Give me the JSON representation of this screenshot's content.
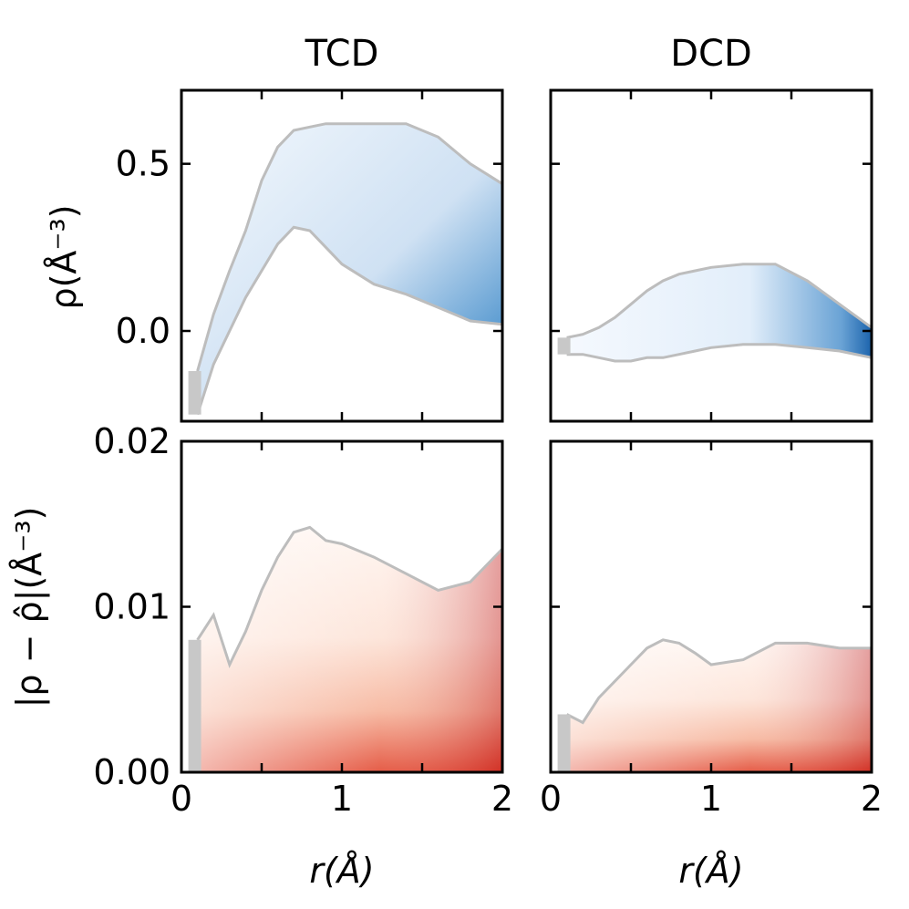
{
  "chart_data": [
    {
      "id": "tcd-density",
      "type": "heatmap",
      "title": "TCD",
      "xlabel": "",
      "ylabel": "ρ(Å⁻³)",
      "xlim": [
        0,
        2
      ],
      "ylim": [
        -0.27,
        0.72
      ],
      "yticks": [
        0.0,
        0.5
      ],
      "ytick_labels": [
        "0.0",
        "0.5"
      ],
      "colormap": "Blues",
      "band": {
        "r": [
          0.1,
          0.2,
          0.3,
          0.4,
          0.5,
          0.6,
          0.7,
          0.8,
          0.9,
          1.0,
          1.2,
          1.4,
          1.6,
          1.8,
          2.0
        ],
        "lower": [
          -0.25,
          -0.1,
          0.0,
          0.1,
          0.18,
          0.26,
          0.31,
          0.3,
          0.25,
          0.2,
          0.14,
          0.11,
          0.07,
          0.03,
          0.02
        ],
        "upper": [
          -0.12,
          0.05,
          0.18,
          0.3,
          0.45,
          0.55,
          0.6,
          0.61,
          0.62,
          0.62,
          0.62,
          0.62,
          0.58,
          0.5,
          0.44
        ]
      }
    },
    {
      "id": "dcd-density",
      "type": "heatmap",
      "title": "DCD",
      "xlabel": "",
      "ylabel": "",
      "xlim": [
        0,
        2
      ],
      "ylim": [
        -0.27,
        0.72
      ],
      "yticks": [
        0.0,
        0.5
      ],
      "ytick_labels": [
        "",
        ""
      ],
      "colormap": "Blues",
      "band": {
        "r": [
          0.1,
          0.2,
          0.3,
          0.4,
          0.5,
          0.6,
          0.7,
          0.8,
          0.9,
          1.0,
          1.2,
          1.4,
          1.6,
          1.8,
          2.0
        ],
        "lower": [
          -0.07,
          -0.07,
          -0.08,
          -0.09,
          -0.09,
          -0.08,
          -0.08,
          -0.07,
          -0.06,
          -0.05,
          -0.04,
          -0.04,
          -0.05,
          -0.06,
          -0.08
        ],
        "upper": [
          -0.02,
          -0.01,
          0.01,
          0.04,
          0.08,
          0.12,
          0.15,
          0.17,
          0.18,
          0.19,
          0.2,
          0.2,
          0.15,
          0.08,
          0.01
        ]
      }
    },
    {
      "id": "tcd-error",
      "type": "heatmap",
      "title": "",
      "xlabel": "r(Å)",
      "ylabel": "|ρ − ρ̂|(Å⁻³)",
      "xlim": [
        0,
        2
      ],
      "ylim": [
        0,
        0.02
      ],
      "xticks": [
        0,
        1,
        2
      ],
      "xtick_labels": [
        "0",
        "1",
        "2"
      ],
      "yticks": [
        0.0,
        0.01,
        0.02
      ],
      "ytick_labels": [
        "0.00",
        "0.01",
        "0.02"
      ],
      "colormap": "Reds",
      "band": {
        "r": [
          0.1,
          0.2,
          0.3,
          0.4,
          0.5,
          0.6,
          0.7,
          0.8,
          0.9,
          1.0,
          1.2,
          1.4,
          1.6,
          1.8,
          2.0
        ],
        "lower": [
          0,
          0,
          0,
          0,
          0,
          0,
          0,
          0,
          0,
          0,
          0,
          0,
          0,
          0,
          0
        ],
        "upper": [
          0.008,
          0.0095,
          0.0065,
          0.0085,
          0.011,
          0.013,
          0.0145,
          0.0148,
          0.014,
          0.0138,
          0.013,
          0.012,
          0.011,
          0.0115,
          0.0135
        ]
      }
    },
    {
      "id": "dcd-error",
      "type": "heatmap",
      "title": "",
      "xlabel": "r(Å)",
      "ylabel": "",
      "xlim": [
        0,
        2
      ],
      "ylim": [
        0,
        0.02
      ],
      "xticks": [
        0,
        1,
        2
      ],
      "xtick_labels": [
        "0",
        "1",
        "2"
      ],
      "yticks": [
        0.0,
        0.01,
        0.02
      ],
      "ytick_labels": [
        "",
        "",
        ""
      ],
      "colormap": "Reds",
      "band": {
        "r": [
          0.1,
          0.2,
          0.3,
          0.4,
          0.5,
          0.6,
          0.7,
          0.8,
          0.9,
          1.0,
          1.2,
          1.4,
          1.6,
          1.8,
          2.0
        ],
        "lower": [
          0,
          0,
          0,
          0,
          0,
          0,
          0,
          0,
          0,
          0,
          0,
          0,
          0,
          0,
          0
        ],
        "upper": [
          0.0035,
          0.003,
          0.0045,
          0.0055,
          0.0065,
          0.0075,
          0.008,
          0.0078,
          0.0072,
          0.0065,
          0.0068,
          0.0078,
          0.0078,
          0.0075,
          0.0075
        ]
      }
    }
  ],
  "colors": {
    "blue_light": "#e8f1fb",
    "blue_dark": "#1c64ad",
    "red_light": "#fdebe3",
    "red_dark": "#c4161c",
    "edge_gray": "#bdbdbd"
  }
}
